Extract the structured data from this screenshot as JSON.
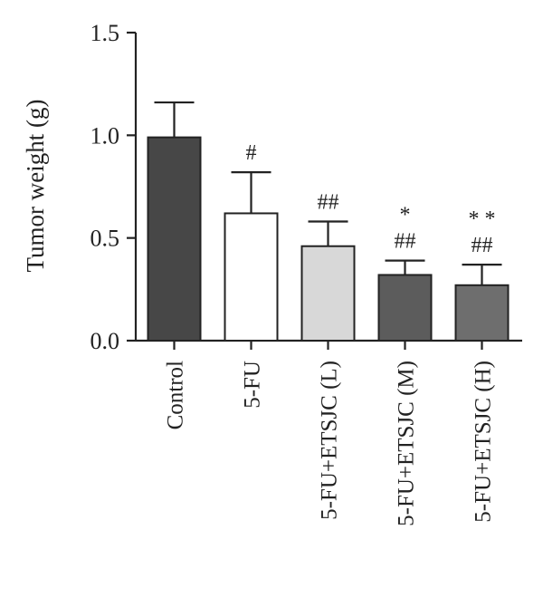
{
  "chart_data": {
    "type": "bar",
    "title": "",
    "xlabel": "",
    "ylabel": "Tumor weight (g)",
    "ylim": [
      0,
      1.5
    ],
    "yticks": [
      "0.0",
      "0.5",
      "1.0",
      "1.5"
    ],
    "categories": [
      "Control",
      "5-FU",
      "5-FU+ETSJC (L)",
      "5-FU+ETSJC (M)",
      "5-FU+ETSJC (H)"
    ],
    "values": [
      0.99,
      0.62,
      0.46,
      0.32,
      0.27
    ],
    "errors": [
      0.17,
      0.2,
      0.12,
      0.07,
      0.1
    ],
    "bar_colors": [
      "#474747",
      "#ffffff",
      "#d8d8d8",
      "#5c5c5c",
      "#6e6e6e"
    ],
    "significance": [
      [],
      [
        "#"
      ],
      [
        "##"
      ],
      [
        "*",
        "##"
      ],
      [
        "* *",
        "##"
      ]
    ],
    "grid": false,
    "legend": "none"
  }
}
